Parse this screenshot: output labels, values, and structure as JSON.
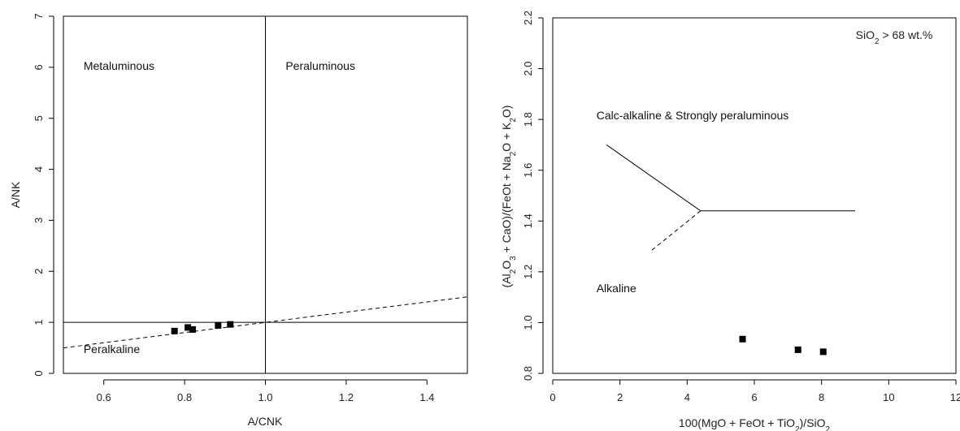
{
  "colors": {
    "axis": "#000000",
    "points": "#000000",
    "annotation": "#1a1a80"
  },
  "chart_data": [
    {
      "type": "scatter",
      "xlabel": "A/CNK",
      "ylabel": "A/NK",
      "xlim": [
        0.5,
        1.5
      ],
      "ylim": [
        0,
        7
      ],
      "xticks": [
        0.6,
        0.8,
        1.0,
        1.2,
        1.4
      ],
      "xtick_labels": [
        "0.6",
        "0.8",
        "1.0",
        "1.2",
        "1.4"
      ],
      "yticks": [
        0,
        1,
        2,
        3,
        4,
        5,
        6,
        7
      ],
      "ytick_labels": [
        "0",
        "1",
        "2",
        "3",
        "4",
        "5",
        "6",
        "7"
      ],
      "regions": [
        {
          "label": "Metaluminous",
          "x": 0.55,
          "y": 5.95
        },
        {
          "label": "Peraluminous",
          "x": 1.05,
          "y": 5.95
        },
        {
          "label": "Peralkaline",
          "x": 0.55,
          "y": 0.4
        }
      ],
      "lines": [
        {
          "style": "solid",
          "points": [
            [
              0.5,
              1.0
            ],
            [
              1.5,
              1.0
            ]
          ]
        },
        {
          "style": "solid",
          "points": [
            [
              1.0,
              0
            ],
            [
              1.0,
              7
            ]
          ]
        },
        {
          "style": "dashed",
          "points": [
            [
              0.5,
              0.5
            ],
            [
              1.5,
              1.5
            ]
          ]
        }
      ],
      "points": [
        {
          "x": 0.775,
          "y": 0.83
        },
        {
          "x": 0.808,
          "y": 0.9
        },
        {
          "x": 0.82,
          "y": 0.86
        },
        {
          "x": 0.883,
          "y": 0.94
        },
        {
          "x": 0.913,
          "y": 0.96
        }
      ],
      "grid": false
    },
    {
      "type": "scatter",
      "xlim": [
        0,
        12
      ],
      "ylim": [
        0.8,
        2.2
      ],
      "xticks": [
        0,
        2,
        4,
        6,
        8,
        10,
        12
      ],
      "xtick_labels": [
        "0",
        "2",
        "4",
        "6",
        "8",
        "10",
        "12"
      ],
      "yticks": [
        0.8,
        1.0,
        1.2,
        1.4,
        1.6,
        1.8,
        2.0,
        2.2
      ],
      "ytick_labels": [
        "0.8",
        "1.0",
        "1.2",
        "1.4",
        "1.6",
        "1.8",
        "2.0",
        "2.2"
      ],
      "xlabel_parts": [
        {
          "t": "100(MgO + FeOt + TiO",
          "sub": false
        },
        {
          "t": "2",
          "sub": true
        },
        {
          "t": ")/SiO",
          "sub": false
        },
        {
          "t": "2",
          "sub": true
        }
      ],
      "ylabel_parts": [
        {
          "t": "(Al",
          "sub": false
        },
        {
          "t": "2",
          "sub": true
        },
        {
          "t": "O",
          "sub": false
        },
        {
          "t": "3",
          "sub": true
        },
        {
          "t": " + CaO)/(FeOt + Na",
          "sub": false
        },
        {
          "t": "2",
          "sub": true
        },
        {
          "t": "O + K",
          "sub": false
        },
        {
          "t": "2",
          "sub": true
        },
        {
          "t": "O)",
          "sub": false
        }
      ],
      "annotation_parts": [
        {
          "t": "SiO",
          "sub": false
        },
        {
          "t": "2",
          "sub": true
        },
        {
          "t": " > 68 wt.%",
          "sub": false
        }
      ],
      "regions": [
        {
          "label": "Calc-alkaline & Strongly peraluminous",
          "x": 1.3,
          "y": 1.8
        },
        {
          "label": "Alkaline",
          "x": 1.3,
          "y": 1.12
        }
      ],
      "lines": [
        {
          "style": "solid",
          "points": [
            [
              1.6,
              1.7
            ],
            [
              4.4,
              1.44
            ]
          ]
        },
        {
          "style": "solid",
          "points": [
            [
              4.4,
              1.44
            ],
            [
              9.0,
              1.44
            ]
          ]
        },
        {
          "style": "dashed",
          "points": [
            [
              4.4,
              1.44
            ],
            [
              2.9,
              1.28
            ]
          ]
        }
      ],
      "points": [
        {
          "x": 5.65,
          "y": 0.935
        },
        {
          "x": 7.3,
          "y": 0.893
        },
        {
          "x": 8.05,
          "y": 0.885
        }
      ],
      "grid": false
    }
  ]
}
